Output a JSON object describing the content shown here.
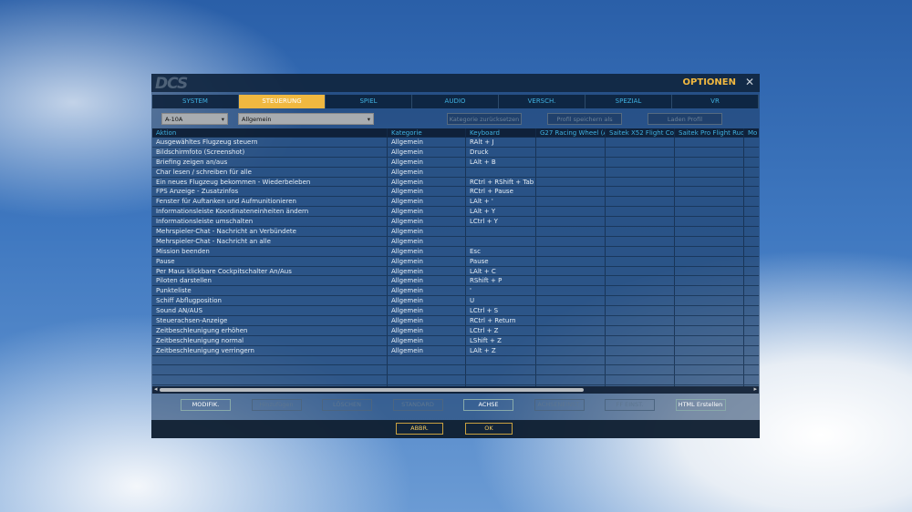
{
  "window": {
    "logo": "DCS",
    "title": "OPTIONEN",
    "close_icon": "close-icon"
  },
  "tabs": [
    "SYSTEM",
    "STEUERUNG",
    "SPIEL",
    "AUDIO",
    "VERSCH.",
    "SPEZIAL",
    "VR"
  ],
  "active_tab": "STEUERUNG",
  "toolbar": {
    "aircraft": "A-10A",
    "category": "Allgemein",
    "reset_category": "Kategorie zurücksetzen",
    "save_profile": "Profil speichern als",
    "load_profile": "Laden Profil"
  },
  "table": {
    "headers": [
      "Aktion",
      "Kategorie",
      "Keyboard",
      "G27 Racing Wheel (AC",
      "Saitek X52 Flight Contr",
      "Saitek Pro Flight Rudde",
      "Mo"
    ],
    "rows": [
      [
        "Ausgewähltes Flugzeug steuern",
        "Allgemein",
        "RAlt + J"
      ],
      [
        "Bildschirmfoto (Screenshot)",
        "Allgemein",
        "Druck"
      ],
      [
        "Briefing zeigen an/aus",
        "Allgemein",
        "LAlt + B"
      ],
      [
        "Char lesen / schreiben für alle",
        "Allgemein",
        ""
      ],
      [
        "Ein neues Flugzeug bekommen - Wiederbeleben",
        "Allgemein",
        "RCtrl + RShift + Tab"
      ],
      [
        "FPS Anzeige - Zusatzinfos",
        "Allgemein",
        "RCtrl + Pause"
      ],
      [
        "Fenster für Auftanken und Aufmunitionieren",
        "Allgemein",
        "LAlt + '"
      ],
      [
        "Informationsleiste Koordinateneinheiten ändern",
        "Allgemein",
        "LAlt + Y"
      ],
      [
        "Informationsleiste umschalten",
        "Allgemein",
        "LCtrl + Y"
      ],
      [
        "Mehrspieler-Chat - Nachricht an Verbündete",
        "Allgemein",
        ""
      ],
      [
        "Mehrspieler-Chat - Nachricht an alle",
        "Allgemein",
        ""
      ],
      [
        "Mission beenden",
        "Allgemein",
        "Esc"
      ],
      [
        "Pause",
        "Allgemein",
        "Pause"
      ],
      [
        "Per Maus klickbare Cockpitschalter An/Aus",
        "Allgemein",
        "LAlt + C"
      ],
      [
        "Piloten darstellen",
        "Allgemein",
        "RShift + P"
      ],
      [
        "Punkteliste",
        "Allgemein",
        "'"
      ],
      [
        "Schiff Abflugposition",
        "Allgemein",
        "U"
      ],
      [
        "Sound AN/AUS",
        "Allgemein",
        "LCtrl + S"
      ],
      [
        "Steuerachsen-Anzeige",
        "Allgemein",
        "RCtrl + Return"
      ],
      [
        "Zeitbeschleunigung erhöhen",
        "Allgemein",
        "LCtrl + Z"
      ],
      [
        "Zeitbeschleunigung normal",
        "Allgemein",
        "LShift + Z"
      ],
      [
        "Zeitbeschleunigung verringern",
        "Allgemein",
        "LAlt + Z"
      ]
    ]
  },
  "buttons": [
    {
      "label": "MODIFIK.",
      "enabled": true
    },
    {
      "label": "Hinzufügen",
      "enabled": false
    },
    {
      "label": "LÖSCHEN",
      "enabled": false
    },
    {
      "label": "STANDARD",
      "enabled": false
    },
    {
      "label": "ACHSE",
      "enabled": true
    },
    {
      "label": "ACHSENEINST.",
      "enabled": false
    },
    {
      "label": "FF EINST.",
      "enabled": false
    },
    {
      "label": "HTML Erstellen",
      "enabled": true
    }
  ],
  "footer": {
    "cancel": "ABBR.",
    "ok": "OK"
  },
  "colors": {
    "accent": "#f0b840",
    "header_text": "#3fb0e0"
  }
}
